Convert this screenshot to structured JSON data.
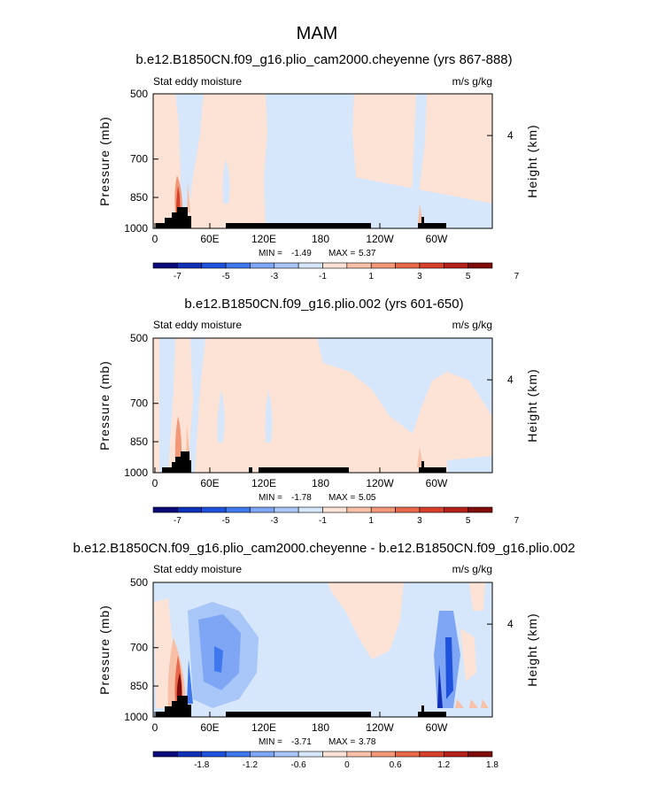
{
  "page_title": "MAM",
  "chart_data": [
    {
      "type": "heatmap",
      "title": "b.e12.B1850CN.f09_g16.plio_cam2000.cheyenne (yrs 867-888)",
      "left_label": "Stat eddy moisture",
      "right_label": "m/s g/kg",
      "ylabel": "Pressure (mb)",
      "y2label": "Height (km)",
      "y_ticks": [
        "500",
        "700",
        "850",
        "1000"
      ],
      "y2_ticks": [
        "4"
      ],
      "x_ticks": [
        "0",
        "60E",
        "120E",
        "180",
        "120W",
        "60W"
      ],
      "stats": {
        "min_label": "MIN =",
        "min": "-1.49",
        "max_label": "MAX =",
        "max": "5.37"
      },
      "colorbar_labels": [
        "-7",
        "-5",
        "-3",
        "-1",
        "1",
        "3",
        "5",
        "7"
      ],
      "colorbar_colors": [
        "#0a0a78",
        "#1030b8",
        "#1f52dc",
        "#3f78ec",
        "#7ea6f4",
        "#a9c6f8",
        "#d6e6fb",
        "#fde3d6",
        "#f8c0a7",
        "#f29778",
        "#e8694a",
        "#d6402a",
        "#b5201a",
        "#7f0b0b"
      ]
    },
    {
      "type": "heatmap",
      "title": "b.e12.B1850CN.f09_g16.plio.002 (yrs 601-650)",
      "left_label": "Stat eddy moisture",
      "right_label": "m/s g/kg",
      "ylabel": "Pressure (mb)",
      "y2label": "Height (km)",
      "y_ticks": [
        "500",
        "700",
        "850",
        "1000"
      ],
      "y2_ticks": [
        "4"
      ],
      "x_ticks": [
        "0",
        "60E",
        "120E",
        "180",
        "120W",
        "60W"
      ],
      "stats": {
        "min_label": "MIN =",
        "min": "-1.78",
        "max_label": "MAX =",
        "max": "5.05"
      },
      "colorbar_labels": [
        "-7",
        "-5",
        "-3",
        "-1",
        "1",
        "3",
        "5",
        "7"
      ],
      "colorbar_colors": [
        "#0a0a78",
        "#1030b8",
        "#1f52dc",
        "#3f78ec",
        "#7ea6f4",
        "#a9c6f8",
        "#d6e6fb",
        "#fde3d6",
        "#f8c0a7",
        "#f29778",
        "#e8694a",
        "#d6402a",
        "#b5201a",
        "#7f0b0b"
      ]
    },
    {
      "type": "heatmap",
      "title": "b.e12.B1850CN.f09_g16.plio_cam2000.cheyenne - b.e12.B1850CN.f09_g16.plio.002",
      "left_label": "Stat eddy moisture",
      "right_label": "m/s g/kg",
      "ylabel": "Pressure (mb)",
      "y2label": "Height (km)",
      "y_ticks": [
        "500",
        "700",
        "850",
        "1000"
      ],
      "y2_ticks": [
        "4"
      ],
      "x_ticks": [
        "0",
        "60E",
        "120E",
        "180",
        "120W",
        "60W"
      ],
      "stats": {
        "min_label": "MIN =",
        "min": "-3.71",
        "max_label": "MAX =",
        "max": "3.78"
      },
      "colorbar_labels": [
        "-1.8",
        "-1.2",
        "-0.6",
        "0",
        "0.6",
        "1.2",
        "1.8"
      ],
      "colorbar_colors": [
        "#0a0a78",
        "#1030b8",
        "#1f52dc",
        "#3f78ec",
        "#7ea6f4",
        "#a9c6f8",
        "#d6e6fb",
        "#fde3d6",
        "#f8c0a7",
        "#f29778",
        "#e8694a",
        "#d6402a",
        "#b5201a",
        "#7f0b0b"
      ]
    }
  ]
}
